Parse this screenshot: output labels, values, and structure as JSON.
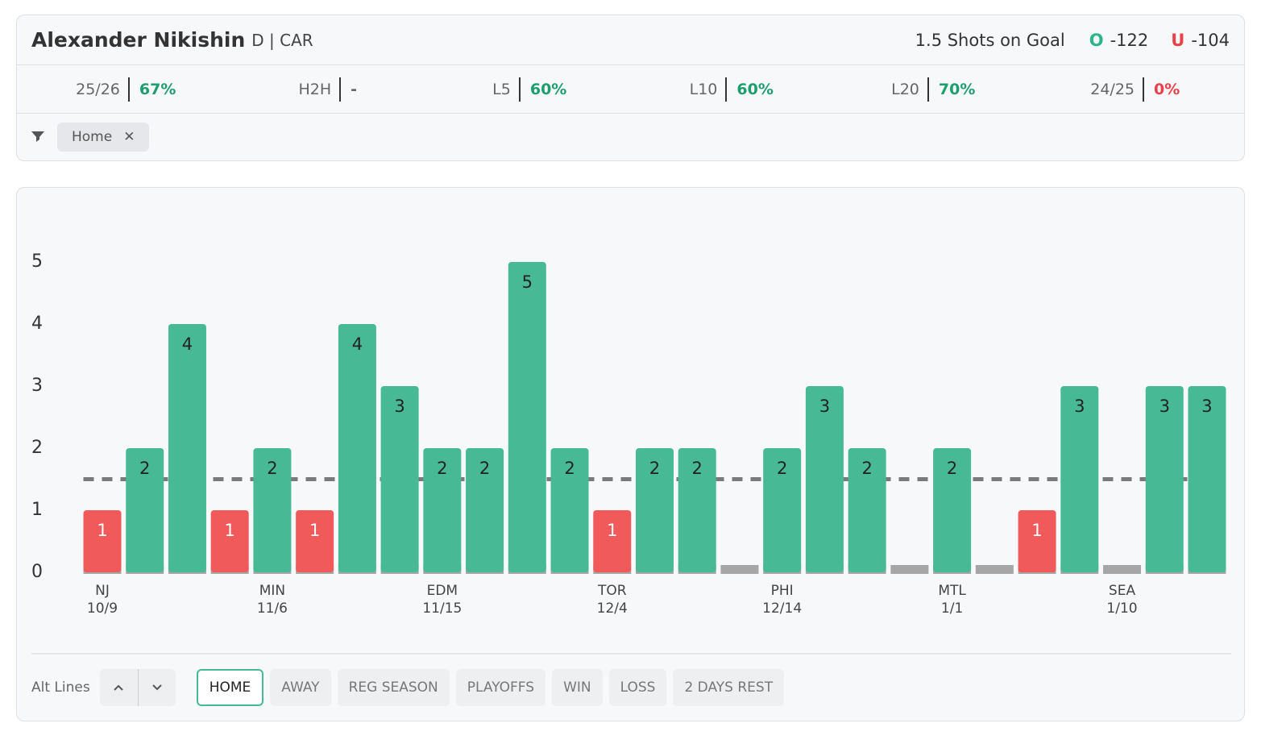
{
  "header": {
    "player": "Alexander Nikishin",
    "position": "D | CAR",
    "prop": "1.5 Shots on Goal",
    "over": {
      "symbol": "O",
      "odds": "-122"
    },
    "under": {
      "symbol": "U",
      "odds": "-104"
    }
  },
  "stats": [
    {
      "label": "25/26",
      "value": "67%",
      "status": "hit"
    },
    {
      "label": "H2H",
      "value": "-",
      "status": "none"
    },
    {
      "label": "L5",
      "value": "60%",
      "status": "hit"
    },
    {
      "label": "L10",
      "value": "60%",
      "status": "hit"
    },
    {
      "label": "L20",
      "value": "70%",
      "status": "hit"
    },
    {
      "label": "24/25",
      "value": "0%",
      "status": "miss"
    }
  ],
  "filters": [
    "Home"
  ],
  "chart_data": {
    "type": "bar",
    "categories": [
      "NJ",
      null,
      null,
      null,
      "MIN",
      null,
      null,
      null,
      "EDM",
      null,
      null,
      null,
      "TOR",
      null,
      null,
      null,
      "PHI",
      null,
      null,
      null,
      "MTL",
      null,
      null,
      null,
      "SEA",
      null,
      null
    ],
    "dates": [
      "10/9",
      null,
      null,
      null,
      "11/6",
      null,
      null,
      null,
      "11/15",
      null,
      null,
      null,
      "12/4",
      null,
      null,
      null,
      "12/14",
      null,
      null,
      null,
      "1/1",
      null,
      null,
      null,
      "1/10",
      null,
      null
    ],
    "values": [
      1,
      2,
      4,
      1,
      2,
      1,
      4,
      3,
      2,
      2,
      5,
      2,
      1,
      2,
      2,
      0,
      2,
      3,
      2,
      0,
      2,
      0,
      1,
      3,
      0,
      3,
      3
    ],
    "line": 1.5,
    "over_color": "#47b994",
    "under_color": "#f05a5a",
    "ylim": [
      0,
      5
    ],
    "yticks": [
      0,
      1,
      2,
      3,
      4,
      5
    ]
  },
  "controls": {
    "alt_lines_label": "Alt Lines",
    "buttons": [
      "HOME",
      "AWAY",
      "REG SEASON",
      "PLAYOFFS",
      "WIN",
      "LOSS",
      "2 DAYS REST"
    ],
    "active": 0
  }
}
